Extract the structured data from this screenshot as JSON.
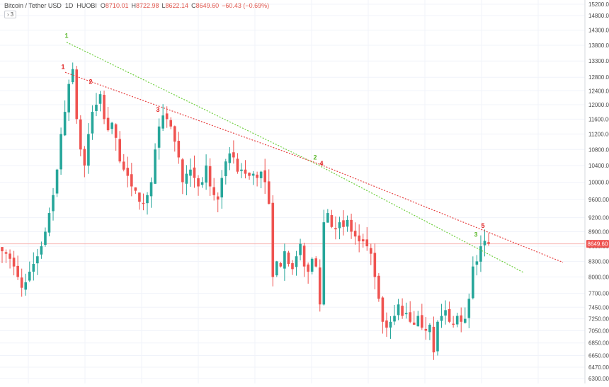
{
  "header": {
    "pair": "Bitcoin / Tether USD",
    "interval": "1D",
    "exchange": "HUOBI",
    "open_key": "O",
    "open": "8710.01",
    "high_key": "H",
    "high": "8722.98",
    "low_key": "L",
    "low": "8622.14",
    "close_key": "C",
    "close": "8649.60",
    "change": "−60.43 (−0.69%)"
  },
  "collapse_button": {
    "chevron": "›",
    "count": "3"
  },
  "price_label": "8649.60",
  "colors": {
    "up": "#26a69a",
    "down": "#ef5350",
    "green_trend": "#6fcf3f",
    "red_trend": "#e64040",
    "grid": "#f0f3fa",
    "price_line": "#f7b4b2"
  },
  "chart_data": {
    "type": "candlestick",
    "y_axis": {
      "ticks": [
        "15200.00",
        "14800.00",
        "14300.00",
        "13800.00",
        "13300.00",
        "12800.00",
        "12400.00",
        "12000.00",
        "11600.00",
        "11200.00",
        "10800.00",
        "10400.00",
        "10000.00",
        "9600.00",
        "9200.00",
        "8900.00",
        "8600.00",
        "8300.00",
        "8000.00",
        "7700.00",
        "7450.00",
        "7250.00",
        "7050.00",
        "6850.00",
        "6650.00",
        "6470.00",
        "6300.00"
      ],
      "scale": "logarithmic",
      "position": "right"
    },
    "grid": true,
    "trendlines": [
      {
        "name": "green",
        "points": [
          [
            94,
            13900
          ],
          [
            445,
            10450
          ],
          [
            740,
            8080
          ]
        ]
      },
      {
        "name": "red",
        "points": [
          [
            92,
            12950
          ],
          [
            453,
            10420
          ],
          [
            795,
            8280
          ]
        ]
      }
    ],
    "wave_labels": [
      {
        "text": "1",
        "x": 94,
        "price": 14050,
        "color": "green"
      },
      {
        "text": "2",
        "x": 445,
        "price": 10550,
        "color": "green"
      },
      {
        "text": "3",
        "x": 672,
        "price": 8800,
        "color": "green"
      },
      {
        "text": "1",
        "x": 89,
        "price": 13050,
        "color": "red"
      },
      {
        "text": "2",
        "x": 128,
        "price": 12600,
        "color": "red"
      },
      {
        "text": "3",
        "x": 223,
        "price": 11800,
        "color": "red"
      },
      {
        "text": "4",
        "x": 454,
        "price": 10400,
        "color": "red"
      },
      {
        "text": "5",
        "x": 682,
        "price": 8980,
        "color": "red"
      }
    ],
    "close_series": [
      8500,
      8450,
      8350,
      8200,
      8000,
      7800,
      7900,
      8100,
      8250,
      8400,
      8600,
      8900,
      9300,
      9700,
      10300,
      11200,
      11800,
      12600,
      13050,
      11600,
      10800,
      10400,
      11200,
      11800,
      12000,
      12300,
      11600,
      11300,
      11500,
      11100,
      10500,
      10300,
      10150,
      9900,
      9800,
      9550,
      9500,
      9700,
      10000,
      10800,
      11400,
      11700,
      11600,
      11400,
      11000,
      10600,
      10000,
      10200,
      10300,
      10100,
      9900,
      10000,
      10400,
      9900,
      9700,
      9600,
      10100,
      10500,
      10700,
      10600,
      10250,
      10300,
      10200,
      10150,
      10200,
      10100,
      10250,
      10000,
      9500,
      8000,
      8300,
      8200,
      8500,
      8250,
      8150,
      8400,
      8650,
      8200,
      8100,
      8350,
      8200,
      7500,
      9100,
      9300,
      9000,
      8950,
      9100,
      9000,
      9150,
      8900,
      8800,
      8700,
      8700,
      8600,
      8450,
      8000,
      7600,
      7200,
      7100,
      7200,
      7300,
      7500,
      7300,
      7350,
      7200,
      7150,
      7300,
      7100,
      7050,
      7150,
      6700,
      7200,
      7300,
      7400,
      7200,
      7150,
      7300,
      7200,
      7250,
      7600,
      8200,
      8300,
      8600,
      8710,
      8650
    ]
  }
}
